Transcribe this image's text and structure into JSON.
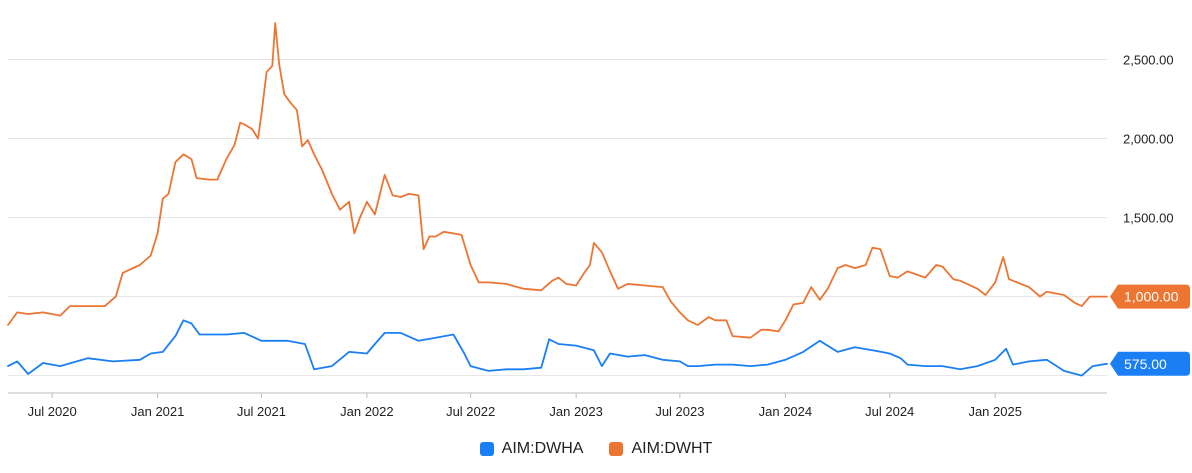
{
  "chart_data": {
    "type": "line",
    "x_range": [
      "2020-04-15",
      "2025-07-15"
    ],
    "y_range": [
      390,
      2750
    ],
    "y_ticks": [
      {
        "value": 1000,
        "label": "1,000.00"
      },
      {
        "value": 1500,
        "label": "1,500.00"
      },
      {
        "value": 2000,
        "label": "2,000.00"
      },
      {
        "value": 2500,
        "label": "2,500.00"
      }
    ],
    "extra_gridlines": [
      500
    ],
    "x_ticks": [
      {
        "date": "2020-07-01",
        "label": "Jul 2020"
      },
      {
        "date": "2021-01-01",
        "label": "Jan 2021"
      },
      {
        "date": "2021-07-01",
        "label": "Jul 2021"
      },
      {
        "date": "2022-01-01",
        "label": "Jan 2022"
      },
      {
        "date": "2022-07-01",
        "label": "Jul 2022"
      },
      {
        "date": "2023-01-01",
        "label": "Jan 2023"
      },
      {
        "date": "2023-07-01",
        "label": "Jul 2023"
      },
      {
        "date": "2024-01-01",
        "label": "Jan 2024"
      },
      {
        "date": "2024-07-01",
        "label": "Jul 2024"
      },
      {
        "date": "2025-01-01",
        "label": "Jan 2025"
      }
    ],
    "grid": true,
    "legend_position": "bottom-center",
    "series": [
      {
        "name": "AIM:DWHA",
        "color": "#1a7ef5",
        "last_value_label": "575.00",
        "points": [
          [
            "2020-04-15",
            560
          ],
          [
            "2020-05-01",
            590
          ],
          [
            "2020-05-20",
            510
          ],
          [
            "2020-06-15",
            580
          ],
          [
            "2020-07-15",
            560
          ],
          [
            "2020-09-01",
            610
          ],
          [
            "2020-10-15",
            590
          ],
          [
            "2020-12-01",
            600
          ],
          [
            "2020-12-20",
            640
          ],
          [
            "2021-01-10",
            650
          ],
          [
            "2021-02-01",
            750
          ],
          [
            "2021-02-15",
            850
          ],
          [
            "2021-03-01",
            830
          ],
          [
            "2021-03-15",
            760
          ],
          [
            "2021-05-01",
            760
          ],
          [
            "2021-06-01",
            770
          ],
          [
            "2021-07-01",
            720
          ],
          [
            "2021-08-15",
            720
          ],
          [
            "2021-09-15",
            700
          ],
          [
            "2021-10-01",
            540
          ],
          [
            "2021-11-01",
            560
          ],
          [
            "2021-12-01",
            650
          ],
          [
            "2022-01-01",
            640
          ],
          [
            "2022-01-15",
            700
          ],
          [
            "2022-02-01",
            770
          ],
          [
            "2022-03-01",
            770
          ],
          [
            "2022-04-01",
            720
          ],
          [
            "2022-05-01",
            740
          ],
          [
            "2022-06-01",
            760
          ],
          [
            "2022-06-20",
            640
          ],
          [
            "2022-07-01",
            560
          ],
          [
            "2022-08-01",
            530
          ],
          [
            "2022-09-01",
            540
          ],
          [
            "2022-10-01",
            540
          ],
          [
            "2022-11-01",
            550
          ],
          [
            "2022-11-15",
            730
          ],
          [
            "2022-12-01",
            700
          ],
          [
            "2023-01-01",
            690
          ],
          [
            "2023-02-01",
            660
          ],
          [
            "2023-02-15",
            560
          ],
          [
            "2023-03-01",
            640
          ],
          [
            "2023-04-01",
            620
          ],
          [
            "2023-05-01",
            630
          ],
          [
            "2023-06-01",
            600
          ],
          [
            "2023-07-01",
            590
          ],
          [
            "2023-07-15",
            560
          ],
          [
            "2023-08-01",
            560
          ],
          [
            "2023-09-01",
            570
          ],
          [
            "2023-10-01",
            570
          ],
          [
            "2023-11-01",
            560
          ],
          [
            "2023-12-01",
            570
          ],
          [
            "2024-01-01",
            600
          ],
          [
            "2024-02-01",
            650
          ],
          [
            "2024-03-01",
            720
          ],
          [
            "2024-04-01",
            650
          ],
          [
            "2024-05-01",
            680
          ],
          [
            "2024-06-01",
            660
          ],
          [
            "2024-07-01",
            640
          ],
          [
            "2024-07-20",
            610
          ],
          [
            "2024-08-01",
            570
          ],
          [
            "2024-09-01",
            560
          ],
          [
            "2024-10-01",
            560
          ],
          [
            "2024-11-01",
            540
          ],
          [
            "2024-12-01",
            560
          ],
          [
            "2025-01-01",
            600
          ],
          [
            "2025-01-20",
            670
          ],
          [
            "2025-02-01",
            570
          ],
          [
            "2025-03-01",
            590
          ],
          [
            "2025-04-01",
            600
          ],
          [
            "2025-05-01",
            530
          ],
          [
            "2025-06-01",
            500
          ],
          [
            "2025-06-20",
            560
          ],
          [
            "2025-07-15",
            575
          ]
        ]
      },
      {
        "name": "AIM:DWHT",
        "color": "#ec7532",
        "last_value_label": "1,000.00",
        "points": [
          [
            "2020-04-15",
            820
          ],
          [
            "2020-05-01",
            900
          ],
          [
            "2020-05-20",
            890
          ],
          [
            "2020-06-15",
            900
          ],
          [
            "2020-07-15",
            880
          ],
          [
            "2020-08-01",
            940
          ],
          [
            "2020-09-01",
            940
          ],
          [
            "2020-10-01",
            940
          ],
          [
            "2020-10-20",
            1000
          ],
          [
            "2020-11-01",
            1150
          ],
          [
            "2020-12-01",
            1200
          ],
          [
            "2020-12-20",
            1260
          ],
          [
            "2021-01-01",
            1400
          ],
          [
            "2021-01-10",
            1620
          ],
          [
            "2021-01-20",
            1650
          ],
          [
            "2021-02-01",
            1850
          ],
          [
            "2021-02-15",
            1900
          ],
          [
            "2021-03-01",
            1870
          ],
          [
            "2021-03-10",
            1750
          ],
          [
            "2021-04-01",
            1740
          ],
          [
            "2021-04-15",
            1740
          ],
          [
            "2021-05-01",
            1870
          ],
          [
            "2021-05-15",
            1960
          ],
          [
            "2021-05-25",
            2100
          ],
          [
            "2021-06-01",
            2090
          ],
          [
            "2021-06-15",
            2060
          ],
          [
            "2021-06-25",
            2000
          ],
          [
            "2021-07-01",
            2150
          ],
          [
            "2021-07-10",
            2420
          ],
          [
            "2021-07-20",
            2460
          ],
          [
            "2021-07-25",
            2730
          ],
          [
            "2021-08-01",
            2470
          ],
          [
            "2021-08-10",
            2280
          ],
          [
            "2021-08-20",
            2230
          ],
          [
            "2021-09-01",
            2180
          ],
          [
            "2021-09-10",
            1950
          ],
          [
            "2021-09-20",
            1990
          ],
          [
            "2021-10-01",
            1900
          ],
          [
            "2021-10-15",
            1800
          ],
          [
            "2021-11-01",
            1650
          ],
          [
            "2021-11-15",
            1550
          ],
          [
            "2021-12-01",
            1600
          ],
          [
            "2021-12-10",
            1400
          ],
          [
            "2021-12-20",
            1500
          ],
          [
            "2022-01-01",
            1600
          ],
          [
            "2022-01-15",
            1520
          ],
          [
            "2022-02-01",
            1770
          ],
          [
            "2022-02-15",
            1640
          ],
          [
            "2022-03-01",
            1630
          ],
          [
            "2022-03-15",
            1650
          ],
          [
            "2022-04-01",
            1640
          ],
          [
            "2022-04-10",
            1300
          ],
          [
            "2022-04-20",
            1380
          ],
          [
            "2022-05-01",
            1380
          ],
          [
            "2022-05-15",
            1410
          ],
          [
            "2022-06-01",
            1400
          ],
          [
            "2022-06-15",
            1390
          ],
          [
            "2022-07-01",
            1200
          ],
          [
            "2022-07-15",
            1090
          ],
          [
            "2022-08-01",
            1090
          ],
          [
            "2022-09-01",
            1080
          ],
          [
            "2022-10-01",
            1050
          ],
          [
            "2022-11-01",
            1040
          ],
          [
            "2022-11-20",
            1100
          ],
          [
            "2022-12-01",
            1120
          ],
          [
            "2022-12-15",
            1080
          ],
          [
            "2023-01-01",
            1070
          ],
          [
            "2023-01-15",
            1150
          ],
          [
            "2023-01-25",
            1200
          ],
          [
            "2023-02-01",
            1340
          ],
          [
            "2023-02-15",
            1280
          ],
          [
            "2023-03-01",
            1160
          ],
          [
            "2023-03-15",
            1050
          ],
          [
            "2023-04-01",
            1080
          ],
          [
            "2023-05-01",
            1070
          ],
          [
            "2023-06-01",
            1060
          ],
          [
            "2023-06-15",
            970
          ],
          [
            "2023-07-01",
            900
          ],
          [
            "2023-07-15",
            850
          ],
          [
            "2023-08-01",
            820
          ],
          [
            "2023-08-20",
            870
          ],
          [
            "2023-09-01",
            850
          ],
          [
            "2023-09-20",
            850
          ],
          [
            "2023-10-01",
            750
          ],
          [
            "2023-11-01",
            740
          ],
          [
            "2023-11-20",
            790
          ],
          [
            "2023-12-01",
            790
          ],
          [
            "2023-12-20",
            780
          ],
          [
            "2024-01-01",
            850
          ],
          [
            "2024-01-15",
            950
          ],
          [
            "2024-02-01",
            960
          ],
          [
            "2024-02-15",
            1060
          ],
          [
            "2024-03-01",
            980
          ],
          [
            "2024-03-15",
            1050
          ],
          [
            "2024-04-01",
            1180
          ],
          [
            "2024-04-15",
            1200
          ],
          [
            "2024-05-01",
            1180
          ],
          [
            "2024-05-20",
            1200
          ],
          [
            "2024-06-01",
            1310
          ],
          [
            "2024-06-15",
            1300
          ],
          [
            "2024-07-01",
            1130
          ],
          [
            "2024-07-15",
            1120
          ],
          [
            "2024-08-01",
            1160
          ],
          [
            "2024-09-01",
            1120
          ],
          [
            "2024-09-20",
            1200
          ],
          [
            "2024-10-01",
            1190
          ],
          [
            "2024-10-20",
            1110
          ],
          [
            "2024-11-01",
            1100
          ],
          [
            "2024-12-01",
            1050
          ],
          [
            "2024-12-15",
            1010
          ],
          [
            "2025-01-01",
            1090
          ],
          [
            "2025-01-15",
            1250
          ],
          [
            "2025-01-25",
            1110
          ],
          [
            "2025-02-01",
            1100
          ],
          [
            "2025-03-01",
            1060
          ],
          [
            "2025-03-20",
            1000
          ],
          [
            "2025-04-01",
            1030
          ],
          [
            "2025-05-01",
            1010
          ],
          [
            "2025-05-20",
            960
          ],
          [
            "2025-06-01",
            940
          ],
          [
            "2025-06-15",
            1000
          ],
          [
            "2025-07-15",
            1000
          ]
        ]
      }
    ]
  }
}
